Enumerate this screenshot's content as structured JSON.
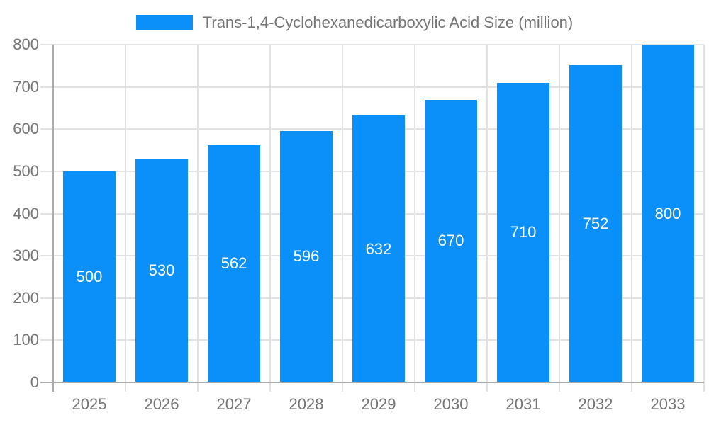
{
  "chart_data": {
    "type": "bar",
    "title": "Trans-1,4-Cyclohexanedicarboxylic Acid Size (million)",
    "categories": [
      "2025",
      "2026",
      "2027",
      "2028",
      "2029",
      "2030",
      "2031",
      "2032",
      "2033"
    ],
    "values": [
      500,
      530,
      562,
      596,
      632,
      670,
      710,
      752,
      800
    ],
    "xlabel": "",
    "ylabel": "",
    "ylim": [
      0,
      800
    ],
    "yticks": [
      0,
      100,
      200,
      300,
      400,
      500,
      600,
      700,
      800
    ],
    "grid": true,
    "legend_position": "top-center",
    "value_labels": "inside-center",
    "colors": {
      "bar": "#0a90f8",
      "value_label": "#ffffff",
      "axis_text": "#757575",
      "gridline": "#e2e2e2",
      "axis_line": "#ababab",
      "background": "#ffffff"
    }
  }
}
